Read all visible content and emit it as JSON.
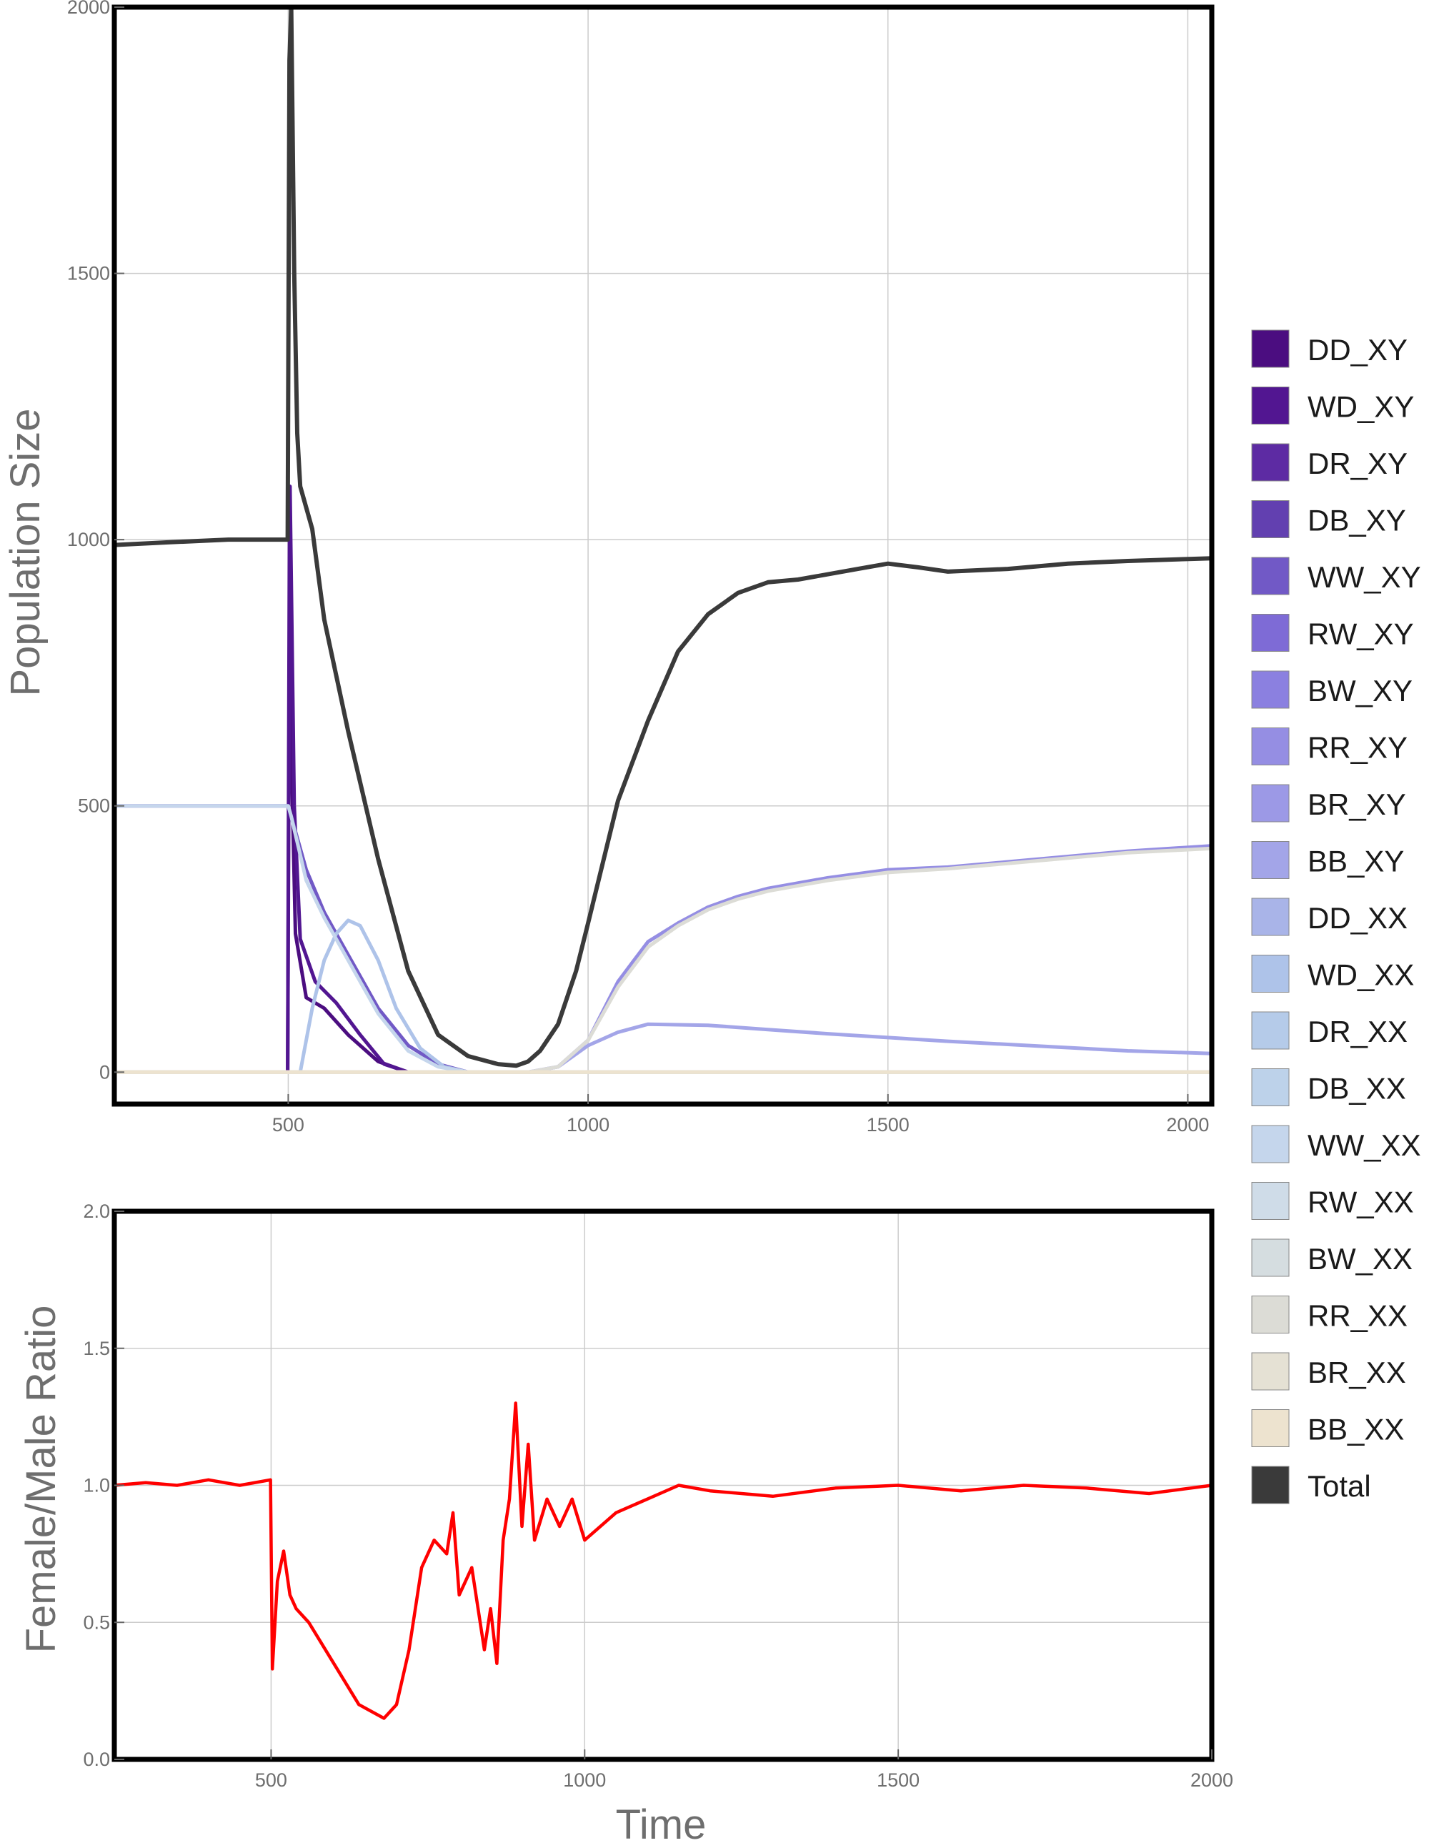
{
  "colors": {
    "total": "#3a3a3a",
    "ratio": "#ff0000",
    "grid": "#cccccc",
    "frame": "#000000"
  },
  "chart_data": [
    {
      "type": "line",
      "title": "",
      "xlabel": "",
      "ylabel": "Population Size",
      "xlim": [
        210,
        2040
      ],
      "ylim": [
        -60,
        2000
      ],
      "xticks": [
        500,
        1000,
        1500,
        2000
      ],
      "yticks": [
        0,
        500,
        1000,
        1500,
        2000
      ],
      "grid": true,
      "legend_position": "right",
      "series": [
        {
          "name": "DD_XY",
          "color": "#4b0d80",
          "x": [
            210,
            499,
            502,
            506,
            512,
            530,
            560,
            600,
            650,
            700,
            2040
          ],
          "y": [
            0,
            0,
            1000,
            560,
            260,
            140,
            120,
            70,
            20,
            0,
            0
          ]
        },
        {
          "name": "WD_XY",
          "color": "#521691",
          "x": [
            210,
            499,
            503,
            510,
            520,
            545,
            580,
            620,
            660,
            700,
            2040
          ],
          "y": [
            0,
            0,
            1100,
            500,
            250,
            170,
            130,
            70,
            15,
            0,
            0
          ]
        },
        {
          "name": "DR_XY",
          "color": "#5d2ba3",
          "x": [
            210,
            2040
          ],
          "y": [
            0,
            0
          ]
        },
        {
          "name": "DB_XY",
          "color": "#6240b0",
          "x": [
            210,
            2040
          ],
          "y": [
            0,
            0
          ]
        },
        {
          "name": "WW_XY",
          "color": "#7159c6",
          "x": [
            210,
            500,
            505,
            530,
            560,
            600,
            650,
            700,
            750,
            800,
            2040
          ],
          "y": [
            500,
            500,
            480,
            380,
            300,
            220,
            120,
            50,
            15,
            0,
            0
          ]
        },
        {
          "name": "RW_XY",
          "color": "#7e6bd6",
          "x": [
            210,
            2040
          ],
          "y": [
            0,
            0
          ]
        },
        {
          "name": "BW_XY",
          "color": "#8b80e0",
          "x": [
            210,
            2040
          ],
          "y": [
            0,
            0
          ]
        },
        {
          "name": "RR_XY",
          "color": "#958ee3",
          "x": [
            210,
            900,
            950,
            1000,
            1050,
            1100,
            1150,
            1200,
            1250,
            1300,
            1400,
            1500,
            1600,
            1700,
            1800,
            1900,
            2040
          ],
          "y": [
            0,
            0,
            10,
            60,
            170,
            245,
            280,
            310,
            330,
            345,
            365,
            380,
            385,
            395,
            405,
            415,
            425
          ]
        },
        {
          "name": "BR_XY",
          "color": "#9c99e6",
          "x": [
            210,
            2040
          ],
          "y": [
            0,
            0
          ]
        },
        {
          "name": "BB_XY",
          "color": "#a3a5e8",
          "x": [
            210,
            900,
            950,
            1000,
            1050,
            1100,
            1200,
            1300,
            1400,
            1500,
            1600,
            1700,
            1800,
            1900,
            2040
          ],
          "y": [
            0,
            0,
            10,
            50,
            75,
            90,
            88,
            80,
            72,
            65,
            58,
            52,
            46,
            40,
            35
          ]
        },
        {
          "name": "DD_XX",
          "color": "#a9b4e8",
          "x": [
            210,
            2040
          ],
          "y": [
            0,
            0
          ]
        },
        {
          "name": "WD_XX",
          "color": "#aec3e9",
          "x": [
            210,
            520,
            540,
            560,
            580,
            600,
            620,
            650,
            680,
            720,
            760,
            800,
            2040
          ],
          "y": [
            0,
            0,
            120,
            210,
            260,
            285,
            275,
            210,
            120,
            45,
            10,
            0,
            0
          ]
        },
        {
          "name": "DR_XX",
          "color": "#b5cbe9",
          "x": [
            210,
            2040
          ],
          "y": [
            0,
            0
          ]
        },
        {
          "name": "DB_XX",
          "color": "#bdd2ea",
          "x": [
            210,
            2040
          ],
          "y": [
            0,
            0
          ]
        },
        {
          "name": "WW_XX",
          "color": "#c5d6ec",
          "x": [
            210,
            500,
            505,
            530,
            560,
            600,
            650,
            700,
            750,
            800,
            2040
          ],
          "y": [
            500,
            500,
            480,
            360,
            290,
            210,
            110,
            40,
            10,
            0,
            0
          ]
        },
        {
          "name": "RW_XX",
          "color": "#cfdce8",
          "x": [
            210,
            2040
          ],
          "y": [
            0,
            0
          ]
        },
        {
          "name": "BW_XX",
          "color": "#d5dde0",
          "x": [
            210,
            2040
          ],
          "y": [
            0,
            0
          ]
        },
        {
          "name": "RR_XX",
          "color": "#dcdcd6",
          "x": [
            210,
            900,
            950,
            1000,
            1050,
            1100,
            1150,
            1200,
            1250,
            1300,
            1400,
            1500,
            1600,
            1700,
            1800,
            1900,
            2040
          ],
          "y": [
            0,
            0,
            10,
            60,
            160,
            235,
            275,
            305,
            325,
            340,
            360,
            375,
            382,
            392,
            402,
            412,
            420
          ]
        },
        {
          "name": "BR_XX",
          "color": "#e5e1d4",
          "x": [
            210,
            2040
          ],
          "y": [
            0,
            0
          ]
        },
        {
          "name": "BB_XX",
          "color": "#ede3cf",
          "x": [
            210,
            2040
          ],
          "y": [
            0,
            0
          ]
        },
        {
          "name": "Total",
          "color": "#3a3a3a",
          "x": [
            210,
            300,
            400,
            499,
            502,
            505,
            510,
            515,
            520,
            525,
            540,
            560,
            600,
            650,
            700,
            750,
            800,
            850,
            880,
            900,
            920,
            950,
            980,
            1000,
            1050,
            1100,
            1150,
            1200,
            1250,
            1300,
            1350,
            1400,
            1450,
            1500,
            1550,
            1600,
            1700,
            1800,
            1900,
            2040
          ],
          "y": [
            990,
            995,
            1000,
            1000,
            1900,
            2000,
            1500,
            1200,
            1100,
            1080,
            1020,
            850,
            640,
            400,
            190,
            70,
            30,
            15,
            12,
            20,
            40,
            90,
            190,
            280,
            510,
            660,
            790,
            860,
            900,
            920,
            925,
            935,
            945,
            955,
            948,
            940,
            945,
            955,
            960,
            965
          ]
        }
      ]
    },
    {
      "type": "line",
      "title": "",
      "xlabel": "Time",
      "ylabel": "Female/Male Ratio",
      "xlim": [
        250,
        2000
      ],
      "ylim": [
        0,
        2
      ],
      "xticks": [
        500,
        1000,
        1500,
        2000
      ],
      "yticks": [
        0.0,
        0.5,
        1.0,
        1.5,
        2.0
      ],
      "ytick_labels": [
        "0.0",
        "0.5",
        "1.0",
        "1.5",
        "2.0"
      ],
      "grid": true,
      "series": [
        {
          "name": "",
          "color": "#ff0000",
          "x": [
            250,
            300,
            350,
            400,
            450,
            499,
            502,
            510,
            520,
            530,
            540,
            560,
            600,
            640,
            680,
            700,
            720,
            740,
            760,
            780,
            790,
            800,
            820,
            840,
            850,
            860,
            870,
            880,
            890,
            900,
            910,
            920,
            940,
            960,
            980,
            1000,
            1050,
            1100,
            1150,
            1200,
            1300,
            1400,
            1500,
            1600,
            1700,
            1800,
            1900,
            2000
          ],
          "y": [
            1.0,
            1.01,
            1.0,
            1.02,
            1.0,
            1.02,
            0.33,
            0.65,
            0.76,
            0.6,
            0.55,
            0.5,
            0.35,
            0.2,
            0.15,
            0.2,
            0.4,
            0.7,
            0.8,
            0.75,
            0.9,
            0.6,
            0.7,
            0.4,
            0.55,
            0.35,
            0.8,
            0.95,
            1.3,
            0.85,
            1.15,
            0.8,
            0.95,
            0.85,
            0.95,
            0.8,
            0.9,
            0.95,
            1.0,
            0.98,
            0.96,
            0.99,
            1.0,
            0.98,
            1.0,
            0.99,
            0.97,
            1.0
          ]
        }
      ]
    }
  ]
}
